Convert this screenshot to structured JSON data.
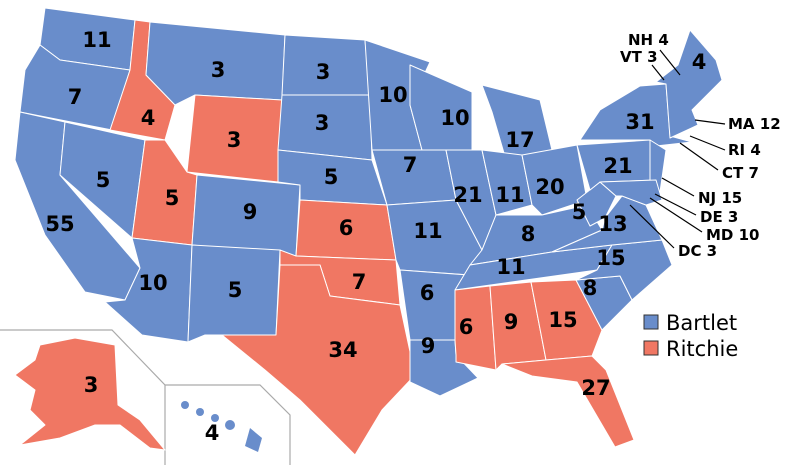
{
  "colors": {
    "Bartlet": "#698dcb",
    "Ritchie": "#f07763"
  },
  "legend": [
    {
      "name": "Bartlet",
      "color": "#698dcb"
    },
    {
      "name": "Ritchie",
      "color": "#f07763"
    }
  ],
  "states": [
    {
      "abbr": "WA",
      "votes": "11",
      "winner": "Bartlet"
    },
    {
      "abbr": "OR",
      "votes": "7",
      "winner": "Bartlet"
    },
    {
      "abbr": "CA",
      "votes": "55",
      "winner": "Bartlet"
    },
    {
      "abbr": "NV",
      "votes": "5",
      "winner": "Bartlet"
    },
    {
      "abbr": "ID",
      "votes": "4",
      "winner": "Ritchie"
    },
    {
      "abbr": "MT",
      "votes": "3",
      "winner": "Bartlet"
    },
    {
      "abbr": "WY",
      "votes": "3",
      "winner": "Ritchie"
    },
    {
      "abbr": "UT",
      "votes": "5",
      "winner": "Ritchie"
    },
    {
      "abbr": "AZ",
      "votes": "10",
      "winner": "Bartlet"
    },
    {
      "abbr": "CO",
      "votes": "9",
      "winner": "Bartlet"
    },
    {
      "abbr": "NM",
      "votes": "5",
      "winner": "Bartlet"
    },
    {
      "abbr": "ND",
      "votes": "3",
      "winner": "Bartlet"
    },
    {
      "abbr": "SD",
      "votes": "3",
      "winner": "Bartlet"
    },
    {
      "abbr": "NE",
      "votes": "5",
      "winner": "Bartlet"
    },
    {
      "abbr": "KS",
      "votes": "6",
      "winner": "Ritchie"
    },
    {
      "abbr": "OK",
      "votes": "7",
      "winner": "Ritchie"
    },
    {
      "abbr": "TX",
      "votes": "34",
      "winner": "Ritchie"
    },
    {
      "abbr": "MN",
      "votes": "10",
      "winner": "Bartlet"
    },
    {
      "abbr": "IA",
      "votes": "7",
      "winner": "Bartlet"
    },
    {
      "abbr": "MO",
      "votes": "11",
      "winner": "Bartlet"
    },
    {
      "abbr": "AR",
      "votes": "6",
      "winner": "Bartlet"
    },
    {
      "abbr": "LA",
      "votes": "9",
      "winner": "Bartlet"
    },
    {
      "abbr": "WI",
      "votes": "10",
      "winner": "Bartlet"
    },
    {
      "abbr": "IL",
      "votes": "21",
      "winner": "Bartlet"
    },
    {
      "abbr": "MI",
      "votes": "17",
      "winner": "Bartlet"
    },
    {
      "abbr": "IN",
      "votes": "11",
      "winner": "Bartlet"
    },
    {
      "abbr": "OH",
      "votes": "20",
      "winner": "Bartlet"
    },
    {
      "abbr": "KY",
      "votes": "8",
      "winner": "Bartlet"
    },
    {
      "abbr": "TN",
      "votes": "11",
      "winner": "Bartlet"
    },
    {
      "abbr": "MS",
      "votes": "6",
      "winner": "Ritchie"
    },
    {
      "abbr": "AL",
      "votes": "9",
      "winner": "Ritchie"
    },
    {
      "abbr": "GA",
      "votes": "15",
      "winner": "Ritchie"
    },
    {
      "abbr": "FL",
      "votes": "27",
      "winner": "Ritchie"
    },
    {
      "abbr": "SC",
      "votes": "8",
      "winner": "Bartlet"
    },
    {
      "abbr": "NC",
      "votes": "15",
      "winner": "Bartlet"
    },
    {
      "abbr": "VA",
      "votes": "13",
      "winner": "Bartlet"
    },
    {
      "abbr": "WV",
      "votes": "5",
      "winner": "Bartlet"
    },
    {
      "abbr": "PA",
      "votes": "21",
      "winner": "Bartlet"
    },
    {
      "abbr": "NY",
      "votes": "31",
      "winner": "Bartlet"
    },
    {
      "abbr": "ME",
      "votes": "4",
      "winner": "Bartlet"
    },
    {
      "abbr": "AK",
      "votes": "3",
      "winner": "Ritchie"
    },
    {
      "abbr": "HI",
      "votes": "4",
      "winner": "Bartlet"
    }
  ],
  "callouts": [
    {
      "abbr": "NH",
      "text": "NH 4",
      "winner": "Bartlet"
    },
    {
      "abbr": "VT",
      "text": "VT 3",
      "winner": "Bartlet"
    },
    {
      "abbr": "MA",
      "text": "MA 12",
      "winner": "Bartlet"
    },
    {
      "abbr": "RI",
      "text": "RI 4",
      "winner": "Bartlet"
    },
    {
      "abbr": "CT",
      "text": "CT 7",
      "winner": "Bartlet"
    },
    {
      "abbr": "NJ",
      "text": "NJ 15",
      "winner": "Bartlet"
    },
    {
      "abbr": "DE",
      "text": "DE 3",
      "winner": "Bartlet"
    },
    {
      "abbr": "MD",
      "text": "MD 10",
      "winner": "Bartlet"
    },
    {
      "abbr": "DC",
      "text": "DC 3",
      "winner": "Bartlet"
    }
  ]
}
